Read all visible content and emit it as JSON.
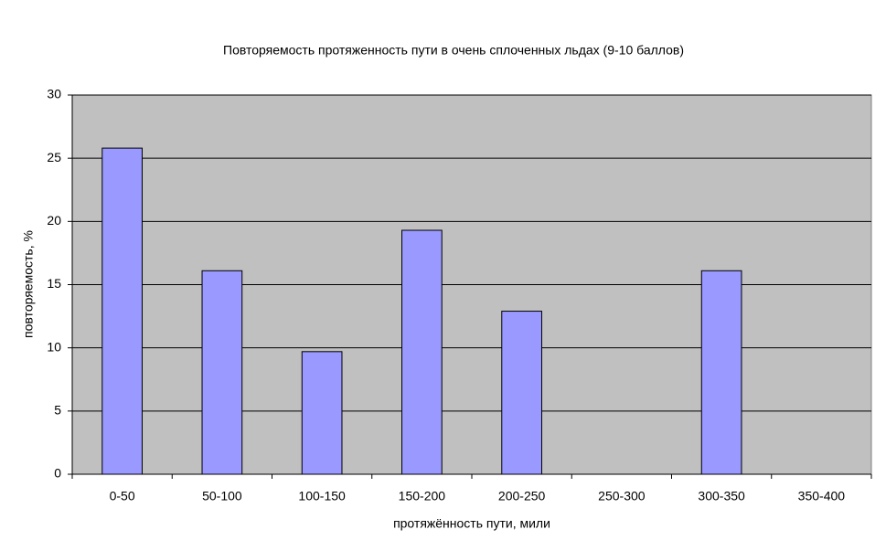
{
  "chart_data": {
    "type": "bar",
    "title": "Повторяемость протяженность пути в очень сплоченных льдах (9-10 баллов)",
    "x_label": "протяжённость пути, мили",
    "y_label": "повторяемость, %",
    "categories": [
      "0-50",
      "50-100",
      "100-150",
      "150-200",
      "200-250",
      "250-300",
      "300-350",
      "350-400"
    ],
    "values": [
      25.8,
      16.1,
      9.7,
      19.3,
      12.9,
      0,
      16.1,
      0
    ],
    "color": "#9999ff",
    "ylim": [
      0,
      30
    ],
    "yticks": [
      0,
      5,
      10,
      15,
      20,
      25,
      30
    ],
    "grid": true
  }
}
